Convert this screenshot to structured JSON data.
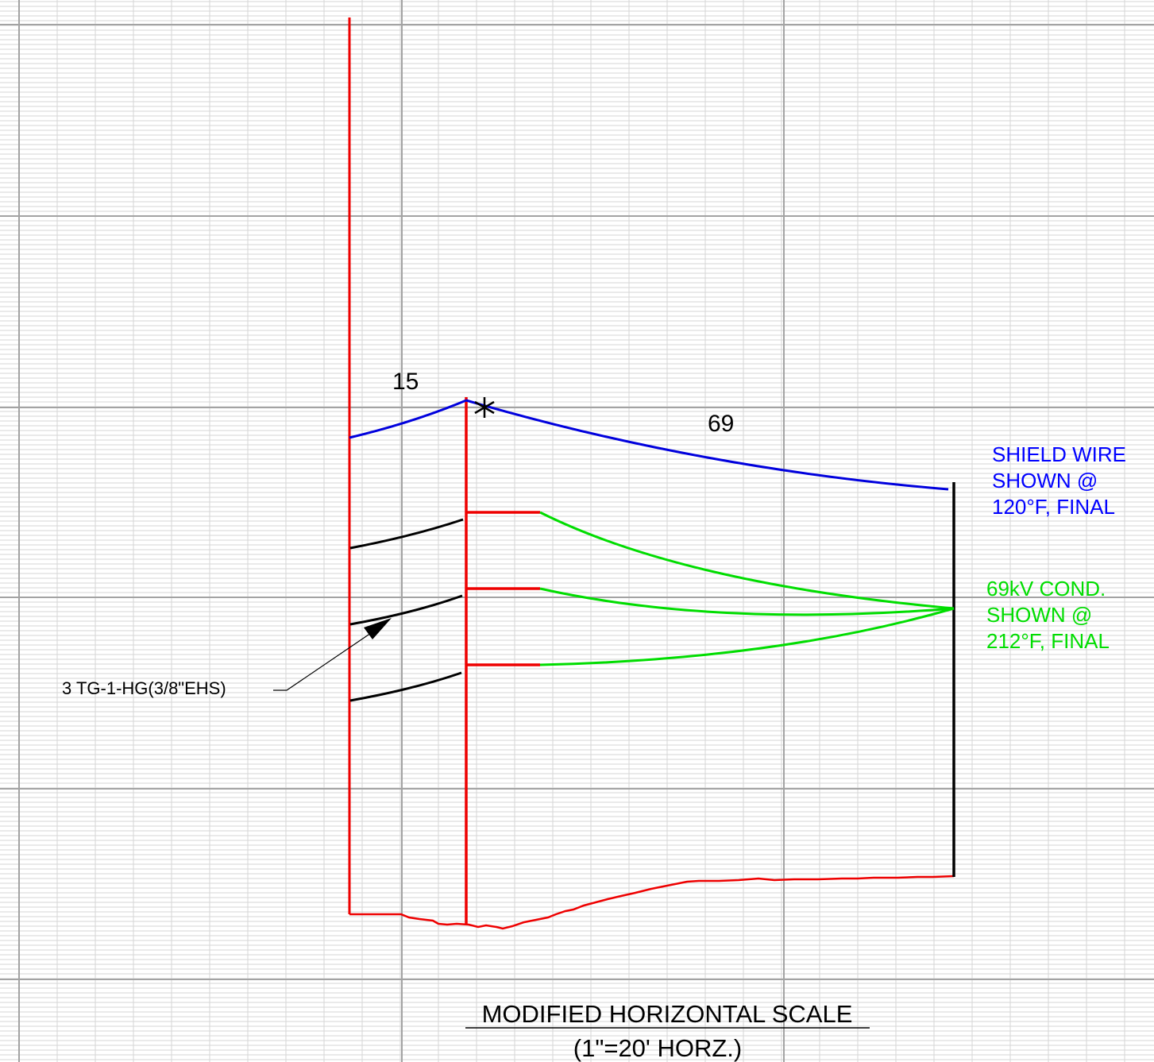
{
  "labels": {
    "span_back": "15",
    "span_ahead": "69",
    "shield_note": [
      "SHIELD WIRE",
      "SHOWN @",
      "120°F, FINAL"
    ],
    "conductor_note": [
      "69kV COND.",
      "SHOWN @",
      "212°F, FINAL"
    ],
    "guy_callout": "3 TG-1-HG(3/8\"EHS)",
    "title": "MODIFIED HORIZONTAL SCALE",
    "subtitle": "(1\"=20' HORZ.)"
  },
  "colors": {
    "structure": "#ee0000",
    "shield_wire": "#0000dd",
    "conductor": "#00dd00",
    "guy_wire": "#000000",
    "grid_major": "#a3a3a3",
    "grid_minor": "#d6d6d6",
    "shield_note_text": "#0000ff",
    "conductor_note_text": "#00dd00"
  },
  "icons": {
    "attachment_marker": "asterisk-marker-icon",
    "callout_arrow": "leader-arrow-icon"
  }
}
